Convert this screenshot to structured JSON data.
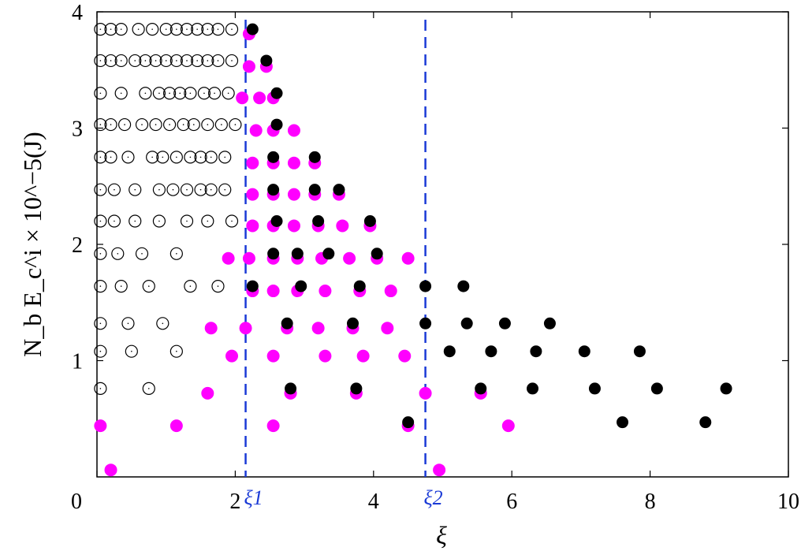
{
  "chart_data": {
    "type": "scatter",
    "xlabel": "ξ",
    "ylabel": "N_b E_c^i × 10^−5(J)",
    "xlim": [
      0,
      10
    ],
    "ylim": [
      0,
      4
    ],
    "xticks": [
      "0",
      "2",
      "4",
      "6",
      "8",
      "10"
    ],
    "yticks": [
      "1",
      "2",
      "3",
      "4"
    ],
    "grid": false,
    "colors": {
      "open": "#000000",
      "magenta": "#ff00ff",
      "black": "#000000",
      "vline": "#1a3ad6"
    },
    "vlines": [
      {
        "x": 2.15,
        "label": "ξ1"
      },
      {
        "x": 4.75,
        "label": "ξ2"
      }
    ],
    "series": [
      {
        "style": "open",
        "points": [
          [
            0.05,
            3.85
          ],
          [
            0.2,
            3.85
          ],
          [
            0.35,
            3.85
          ],
          [
            0.6,
            3.85
          ],
          [
            0.8,
            3.85
          ],
          [
            1.0,
            3.85
          ],
          [
            1.15,
            3.85
          ],
          [
            1.3,
            3.85
          ],
          [
            1.45,
            3.85
          ],
          [
            1.6,
            3.85
          ],
          [
            1.75,
            3.85
          ],
          [
            1.95,
            3.85
          ],
          [
            0.05,
            3.58
          ],
          [
            0.2,
            3.58
          ],
          [
            0.35,
            3.58
          ],
          [
            0.55,
            3.58
          ],
          [
            0.7,
            3.58
          ],
          [
            0.85,
            3.58
          ],
          [
            1.0,
            3.58
          ],
          [
            1.15,
            3.58
          ],
          [
            1.3,
            3.58
          ],
          [
            1.45,
            3.58
          ],
          [
            1.6,
            3.58
          ],
          [
            1.75,
            3.58
          ],
          [
            1.95,
            3.58
          ],
          [
            0.05,
            3.3
          ],
          [
            0.35,
            3.3
          ],
          [
            0.7,
            3.3
          ],
          [
            0.9,
            3.3
          ],
          [
            1.05,
            3.3
          ],
          [
            1.2,
            3.3
          ],
          [
            1.35,
            3.3
          ],
          [
            1.55,
            3.3
          ],
          [
            1.7,
            3.3
          ],
          [
            1.9,
            3.3
          ],
          [
            0.05,
            3.03
          ],
          [
            0.2,
            3.03
          ],
          [
            0.4,
            3.03
          ],
          [
            0.65,
            3.03
          ],
          [
            0.85,
            3.03
          ],
          [
            1.05,
            3.03
          ],
          [
            1.25,
            3.03
          ],
          [
            1.4,
            3.03
          ],
          [
            1.6,
            3.03
          ],
          [
            1.8,
            3.03
          ],
          [
            2.0,
            3.03
          ],
          [
            0.05,
            2.75
          ],
          [
            0.2,
            2.75
          ],
          [
            0.45,
            2.75
          ],
          [
            0.8,
            2.75
          ],
          [
            0.95,
            2.75
          ],
          [
            1.15,
            2.75
          ],
          [
            1.35,
            2.75
          ],
          [
            1.5,
            2.75
          ],
          [
            1.65,
            2.75
          ],
          [
            1.85,
            2.75
          ],
          [
            0.05,
            2.47
          ],
          [
            0.25,
            2.47
          ],
          [
            0.55,
            2.47
          ],
          [
            0.9,
            2.47
          ],
          [
            1.1,
            2.47
          ],
          [
            1.3,
            2.47
          ],
          [
            1.5,
            2.47
          ],
          [
            1.65,
            2.47
          ],
          [
            1.85,
            2.47
          ],
          [
            0.05,
            2.2
          ],
          [
            0.25,
            2.2
          ],
          [
            0.55,
            2.2
          ],
          [
            0.9,
            2.2
          ],
          [
            1.3,
            2.2
          ],
          [
            1.6,
            2.2
          ],
          [
            1.95,
            2.2
          ],
          [
            0.05,
            1.92
          ],
          [
            0.3,
            1.92
          ],
          [
            0.65,
            1.92
          ],
          [
            1.15,
            1.92
          ],
          [
            0.05,
            1.64
          ],
          [
            0.35,
            1.64
          ],
          [
            0.75,
            1.64
          ],
          [
            1.35,
            1.64
          ],
          [
            1.75,
            1.64
          ],
          [
            0.05,
            1.32
          ],
          [
            0.45,
            1.32
          ],
          [
            0.95,
            1.32
          ],
          [
            0.05,
            1.08
          ],
          [
            0.5,
            1.08
          ],
          [
            1.15,
            1.08
          ],
          [
            0.05,
            0.76
          ],
          [
            0.75,
            0.76
          ]
        ]
      },
      {
        "style": "magenta",
        "points": [
          [
            2.2,
            3.83
          ],
          [
            2.2,
            3.55
          ],
          [
            2.45,
            3.55
          ],
          [
            2.1,
            3.28
          ],
          [
            2.35,
            3.28
          ],
          [
            2.55,
            3.28
          ],
          [
            2.3,
            3.0
          ],
          [
            2.55,
            3.0
          ],
          [
            2.85,
            3.0
          ],
          [
            2.25,
            2.72
          ],
          [
            2.55,
            2.72
          ],
          [
            2.85,
            2.72
          ],
          [
            3.15,
            2.72
          ],
          [
            2.25,
            2.45
          ],
          [
            2.55,
            2.45
          ],
          [
            2.85,
            2.45
          ],
          [
            3.15,
            2.45
          ],
          [
            3.5,
            2.45
          ],
          [
            2.25,
            2.18
          ],
          [
            2.55,
            2.18
          ],
          [
            2.85,
            2.18
          ],
          [
            3.2,
            2.18
          ],
          [
            3.55,
            2.18
          ],
          [
            3.95,
            2.18
          ],
          [
            1.9,
            1.9
          ],
          [
            2.2,
            1.9
          ],
          [
            2.55,
            1.9
          ],
          [
            2.9,
            1.9
          ],
          [
            3.25,
            1.9
          ],
          [
            3.65,
            1.9
          ],
          [
            4.05,
            1.9
          ],
          [
            4.5,
            1.9
          ],
          [
            2.25,
            1.62
          ],
          [
            2.55,
            1.62
          ],
          [
            2.9,
            1.62
          ],
          [
            3.3,
            1.62
          ],
          [
            3.8,
            1.62
          ],
          [
            4.25,
            1.62
          ],
          [
            1.65,
            1.3
          ],
          [
            2.15,
            1.3
          ],
          [
            2.75,
            1.3
          ],
          [
            3.2,
            1.3
          ],
          [
            3.7,
            1.3
          ],
          [
            4.2,
            1.3
          ],
          [
            1.95,
            1.06
          ],
          [
            2.55,
            1.06
          ],
          [
            3.3,
            1.06
          ],
          [
            3.85,
            1.06
          ],
          [
            4.45,
            1.06
          ],
          [
            1.6,
            0.74
          ],
          [
            2.8,
            0.74
          ],
          [
            3.75,
            0.74
          ],
          [
            4.75,
            0.74
          ],
          [
            5.55,
            0.74
          ],
          [
            0.05,
            0.46
          ],
          [
            1.15,
            0.46
          ],
          [
            2.55,
            0.46
          ],
          [
            4.5,
            0.46
          ],
          [
            5.95,
            0.46
          ],
          [
            0.2,
            0.08
          ],
          [
            4.95,
            0.08
          ]
        ]
      },
      {
        "style": "black",
        "points": [
          [
            2.25,
            3.85
          ],
          [
            2.45,
            3.58
          ],
          [
            2.6,
            3.3
          ],
          [
            2.6,
            3.03
          ],
          [
            2.55,
            2.75
          ],
          [
            3.15,
            2.75
          ],
          [
            3.5,
            2.47
          ],
          [
            2.55,
            2.47
          ],
          [
            3.15,
            2.47
          ],
          [
            2.6,
            2.2
          ],
          [
            3.2,
            2.2
          ],
          [
            3.95,
            2.2
          ],
          [
            2.55,
            1.92
          ],
          [
            2.9,
            1.92
          ],
          [
            3.35,
            1.92
          ],
          [
            4.05,
            1.92
          ],
          [
            2.25,
            1.64
          ],
          [
            2.95,
            1.64
          ],
          [
            3.8,
            1.64
          ],
          [
            4.75,
            1.64
          ],
          [
            5.3,
            1.64
          ],
          [
            2.75,
            1.32
          ],
          [
            3.7,
            1.32
          ],
          [
            4.75,
            1.32
          ],
          [
            5.35,
            1.32
          ],
          [
            5.9,
            1.32
          ],
          [
            6.55,
            1.32
          ],
          [
            5.1,
            1.08
          ],
          [
            5.7,
            1.08
          ],
          [
            6.35,
            1.08
          ],
          [
            7.05,
            1.08
          ],
          [
            7.85,
            1.08
          ],
          [
            2.8,
            0.76
          ],
          [
            3.75,
            0.76
          ],
          [
            5.55,
            0.76
          ],
          [
            6.3,
            0.76
          ],
          [
            7.2,
            0.76
          ],
          [
            8.1,
            0.76
          ],
          [
            9.1,
            0.76
          ],
          [
            4.5,
            0.47
          ],
          [
            7.6,
            0.47
          ],
          [
            8.8,
            0.47
          ]
        ]
      }
    ]
  }
}
